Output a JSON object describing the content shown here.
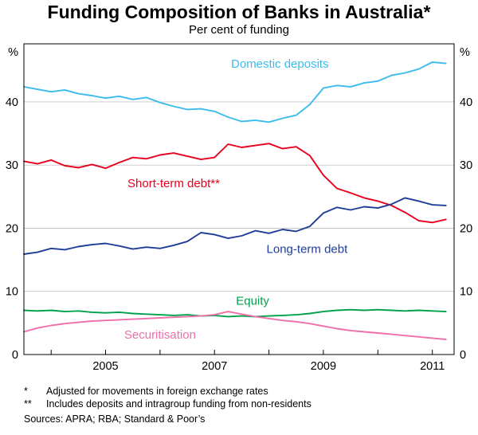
{
  "header": {
    "title": "Funding Composition of Banks in Australia*",
    "subtitle": "Per cent of funding"
  },
  "chart_data": {
    "type": "line",
    "title": "Funding Composition of Banks in Australia*",
    "subtitle": "Per cent of funding",
    "ylabel": "%",
    "ylim": [
      0,
      49.2
    ],
    "xlim": [
      2003.5,
      2011.4
    ],
    "grid": true,
    "y_ticks": [
      0,
      10,
      20,
      30,
      40
    ],
    "x_ticks": [
      2004,
      2005,
      2006,
      2007,
      2008,
      2009,
      2010,
      2011
    ],
    "x_tick_labels": [
      "2005",
      "2007",
      "2009",
      "2011"
    ],
    "x_label_years": [
      2005,
      2007,
      2009,
      2011
    ],
    "x": [
      2003.5,
      2003.75,
      2004,
      2004.25,
      2004.5,
      2004.75,
      2005,
      2005.25,
      2005.5,
      2005.75,
      2006,
      2006.25,
      2006.5,
      2006.75,
      2007,
      2007.25,
      2007.5,
      2007.75,
      2008,
      2008.25,
      2008.5,
      2008.75,
      2009,
      2009.25,
      2009.5,
      2009.75,
      2010,
      2010.25,
      2010.5,
      2010.75,
      2011,
      2011.25
    ],
    "series": [
      {
        "id": "domestic-deposits",
        "name": "Domestic deposits",
        "color": "#3bbced",
        "values": [
          42.4,
          42.0,
          41.6,
          41.9,
          41.3,
          41.0,
          40.6,
          40.9,
          40.4,
          40.7,
          39.9,
          39.3,
          38.8,
          38.9,
          38.5,
          37.6,
          36.9,
          37.1,
          36.8,
          37.4,
          37.9,
          39.6,
          42.2,
          42.6,
          42.4,
          43.0,
          43.3,
          44.2,
          44.6,
          45.2,
          46.3,
          46.1
        ],
        "label": {
          "x": 2008.2,
          "y": 45.4
        }
      },
      {
        "id": "short-term-debt",
        "name": "Short-term debt**",
        "color": "#e8001d",
        "values": [
          30.6,
          30.2,
          30.8,
          29.9,
          29.6,
          30.1,
          29.5,
          30.4,
          31.2,
          31.0,
          31.6,
          31.9,
          31.4,
          30.9,
          31.2,
          33.3,
          32.8,
          33.1,
          33.4,
          32.6,
          32.9,
          31.5,
          28.4,
          26.3,
          25.6,
          24.8,
          24.3,
          23.6,
          22.5,
          21.2,
          20.9,
          21.4
        ],
        "label": {
          "x": 2006.25,
          "y": 26.5
        }
      },
      {
        "id": "long-term-debt",
        "name": "Long-term debt",
        "color": "#1f3d99",
        "values": [
          15.9,
          16.2,
          16.8,
          16.6,
          17.1,
          17.4,
          17.6,
          17.2,
          16.7,
          17.0,
          16.8,
          17.3,
          17.9,
          19.3,
          19.0,
          18.4,
          18.8,
          19.6,
          19.2,
          19.8,
          19.5,
          20.3,
          22.4,
          23.3,
          22.9,
          23.4,
          23.2,
          23.8,
          24.8,
          24.3,
          23.7,
          23.6
        ],
        "label": {
          "x": 2008.7,
          "y": 16.1
        }
      },
      {
        "id": "equity",
        "name": "Equity",
        "color": "#00a14d",
        "values": [
          7.0,
          6.9,
          7.0,
          6.8,
          6.9,
          6.7,
          6.6,
          6.7,
          6.5,
          6.4,
          6.3,
          6.2,
          6.3,
          6.1,
          6.2,
          6.0,
          6.1,
          6.0,
          6.1,
          6.2,
          6.3,
          6.5,
          6.8,
          7.0,
          7.1,
          7.0,
          7.1,
          7.0,
          6.9,
          7.0,
          6.9,
          6.8
        ],
        "label": {
          "x": 2007.7,
          "y": 7.9
        }
      },
      {
        "id": "securitisation",
        "name": "Securitisation",
        "color": "#f06eaa",
        "values": [
          3.6,
          4.2,
          4.6,
          4.9,
          5.1,
          5.3,
          5.4,
          5.5,
          5.6,
          5.7,
          5.8,
          5.9,
          6.0,
          6.1,
          6.3,
          6.8,
          6.4,
          6.0,
          5.7,
          5.4,
          5.2,
          4.9,
          4.5,
          4.1,
          3.8,
          3.6,
          3.4,
          3.2,
          3.0,
          2.8,
          2.6,
          2.4
        ],
        "label": {
          "x": 2006.0,
          "y": 2.5
        }
      }
    ]
  },
  "axes": {
    "unit_left": "%",
    "unit_right": "%"
  },
  "footnotes": [
    {
      "marker": "*",
      "text": "Adjusted for movements in foreign exchange rates"
    },
    {
      "marker": "**",
      "text": "Includes deposits and intragroup funding from non-residents"
    }
  ],
  "sources": "Sources: APRA; RBA; Standard & Poor’s"
}
